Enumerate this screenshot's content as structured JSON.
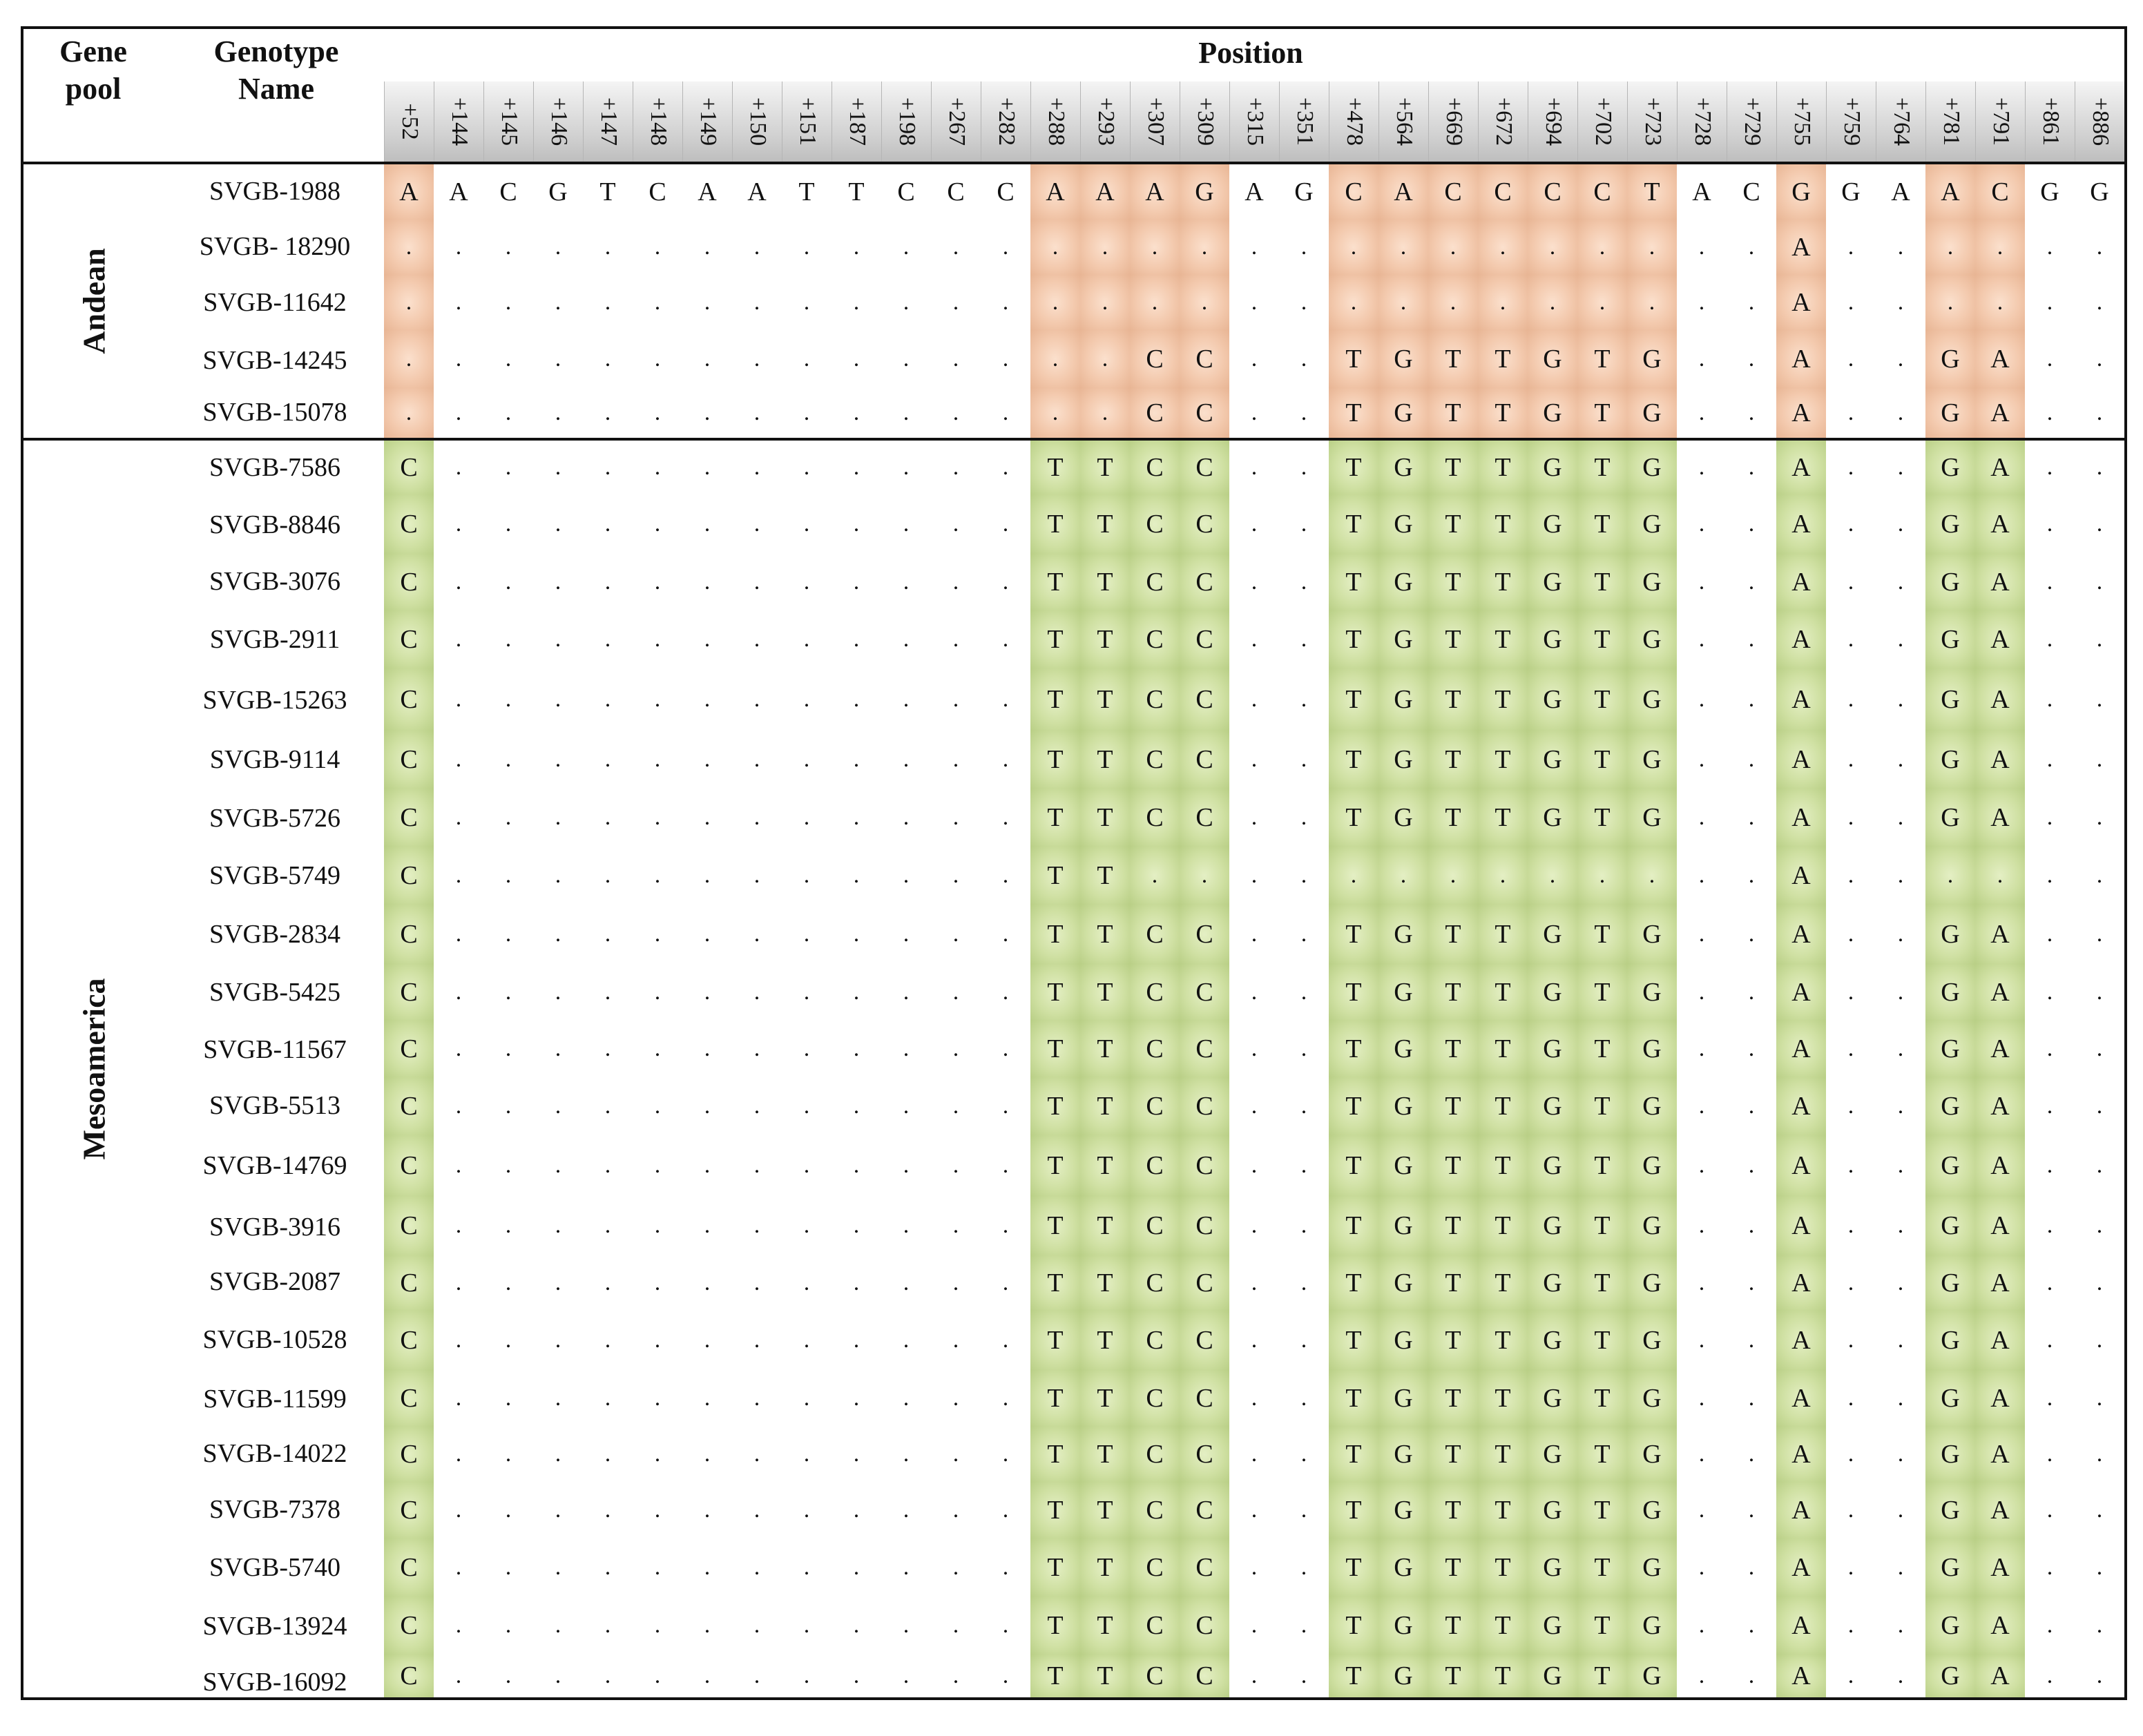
{
  "table": {
    "headers": {
      "gene_pool": "Gene\npool",
      "genotype_name": "Genotype\nName",
      "position": "Position"
    },
    "positions": [
      "+52",
      "+144",
      "+145",
      "+146",
      "+147",
      "+148",
      "+149",
      "+150",
      "+151",
      "+187",
      "+198",
      "+267",
      "+282",
      "+288",
      "+293",
      "+307",
      "+309",
      "+315",
      "+351",
      "+478",
      "+564",
      "+669",
      "+672",
      "+694",
      "+702",
      "+723",
      "+728",
      "+729",
      "+755",
      "+759",
      "+764",
      "+781",
      "+791",
      "+861",
      "+886"
    ],
    "highlight_columns": [
      0,
      13,
      14,
      15,
      16,
      19,
      20,
      21,
      22,
      23,
      24,
      25,
      28,
      31,
      32
    ],
    "colors": {
      "andean_shade": "#f3c9ad",
      "mesoamerica_shade": "#cfe0a2",
      "header_shade": "#cfcfcf",
      "border": "#111111"
    },
    "groups": [
      {
        "label": "Andean",
        "shade": "andean",
        "rows": [
          {
            "name": "SVGB-1988",
            "bases": "A A C G T C A A T T C C C A A A G A G C A C C C C T A C G G A A C G G"
          },
          {
            "name": "SVGB- 18290",
            "bases": ". . . . . . . . . . . . . . . . . . . . . . . . . . . . A . . . . . ."
          },
          {
            "name": "SVGB-11642",
            "bases": ". . . . . . . . . . . . . . . . . . . . . . . . . . . . A . . . . . ."
          },
          {
            "name": "SVGB-14245",
            "bases": ". . . . . . . . . . . . . . . C C . . T G T T G T G . . A . . G A . ."
          },
          {
            "name": "SVGB-15078",
            "bases": ". . . . . . . . . . . . . . . C C . . T G T T G T G . . A . . G A . ."
          }
        ]
      },
      {
        "label": "Mesoamerica",
        "shade": "meso",
        "rows": [
          {
            "name": "SVGB-7586",
            "bases": "C . . . . . . . . . . . . T T C C . . T G T T G T G . . A . . G A . ."
          },
          {
            "name": "SVGB-8846",
            "bases": "C . . . . . . . . . . . . T T C C . . T G T T G T G . . A . . G A . ."
          },
          {
            "name": "SVGB-3076",
            "bases": "C . . . . . . . . . . . . T T C C . . T G T T G T G . . A . . G A . ."
          },
          {
            "name": "SVGB-2911",
            "bases": "C . . . . . . . . . . . . T T C C . . T G T T G T G . . A . . G A . ."
          },
          {
            "name": "SVGB-15263",
            "bases": "C . . . . . . . . . . . . T T C C . . T G T T G T G . . A . . G A . ."
          },
          {
            "name": "SVGB-9114",
            "bases": "C . . . . . . . . . . . . T T C C . . T G T T G T G . . A . . G A . ."
          },
          {
            "name": "SVGB-5726",
            "bases": "C . . . . . . . . . . . . T T C C . . T G T T G T G . . A . . G A . ."
          },
          {
            "name": "SVGB-5749",
            "bases": "C . . . . . . . . . . . . T T . . . . . . . . . . . . . A . . . . . ."
          },
          {
            "name": "SVGB-2834",
            "bases": "C . . . . . . . . . . . . T T C C . . T G T T G T G . . A . . G A . ."
          },
          {
            "name": "SVGB-5425",
            "bases": "C . . . . . . . . . . . . T T C C . . T G T T G T G . . A . . G A . ."
          },
          {
            "name": "SVGB-11567",
            "bases": "C . . . . . . . . . . . . T T C C . . T G T T G T G . . A . . G A . ."
          },
          {
            "name": "SVGB-5513",
            "bases": "C . . . . . . . . . . . . T T C C . . T G T T G T G . . A . . G A . ."
          },
          {
            "name": "SVGB-14769",
            "bases": "C . . . . . . . . . . . . T T C C . . T G T T G T G . . A . . G A . ."
          },
          {
            "name": "SVGB-3916",
            "bases": "C . . . . . . . . . . . . T T C C . . T G T T G T G . . A . . G A . ."
          },
          {
            "name": "SVGB-2087",
            "bases": "C . . . . . . . . . . . . T T C C . . T G T T G T G . . A . . G A . ."
          },
          {
            "name": "SVGB-10528",
            "bases": "C . . . . . . . . . . . . T T C C . . T G T T G T G . . A . . G A . ."
          },
          {
            "name": "SVGB-11599",
            "bases": "C . . . . . . . . . . . . T T C C . . T G T T G T G . . A . . G A . ."
          },
          {
            "name": "SVGB-14022",
            "bases": "C . . . . . . . . . . . . T T C C . . T G T T G T G . . A . . G A . ."
          },
          {
            "name": "SVGB-7378",
            "bases": "C . . . . . . . . . . . . T T C C . . T G T T G T G . . A . . G A . ."
          },
          {
            "name": "SVGB-5740",
            "bases": "C . . . . . . . . . . . . T T C C . . T G T T G T G . . A . . G A . ."
          },
          {
            "name": "SVGB-13924",
            "bases": "C . . . . . . . . . . . . T T C C . . T G T T G T G . . A . . G A . ."
          },
          {
            "name": "SVGB-16092",
            "bases": "C . . . . . . . . . . . . T T C C . . T G T T G T G . . A . . G A . ."
          }
        ]
      }
    ]
  }
}
